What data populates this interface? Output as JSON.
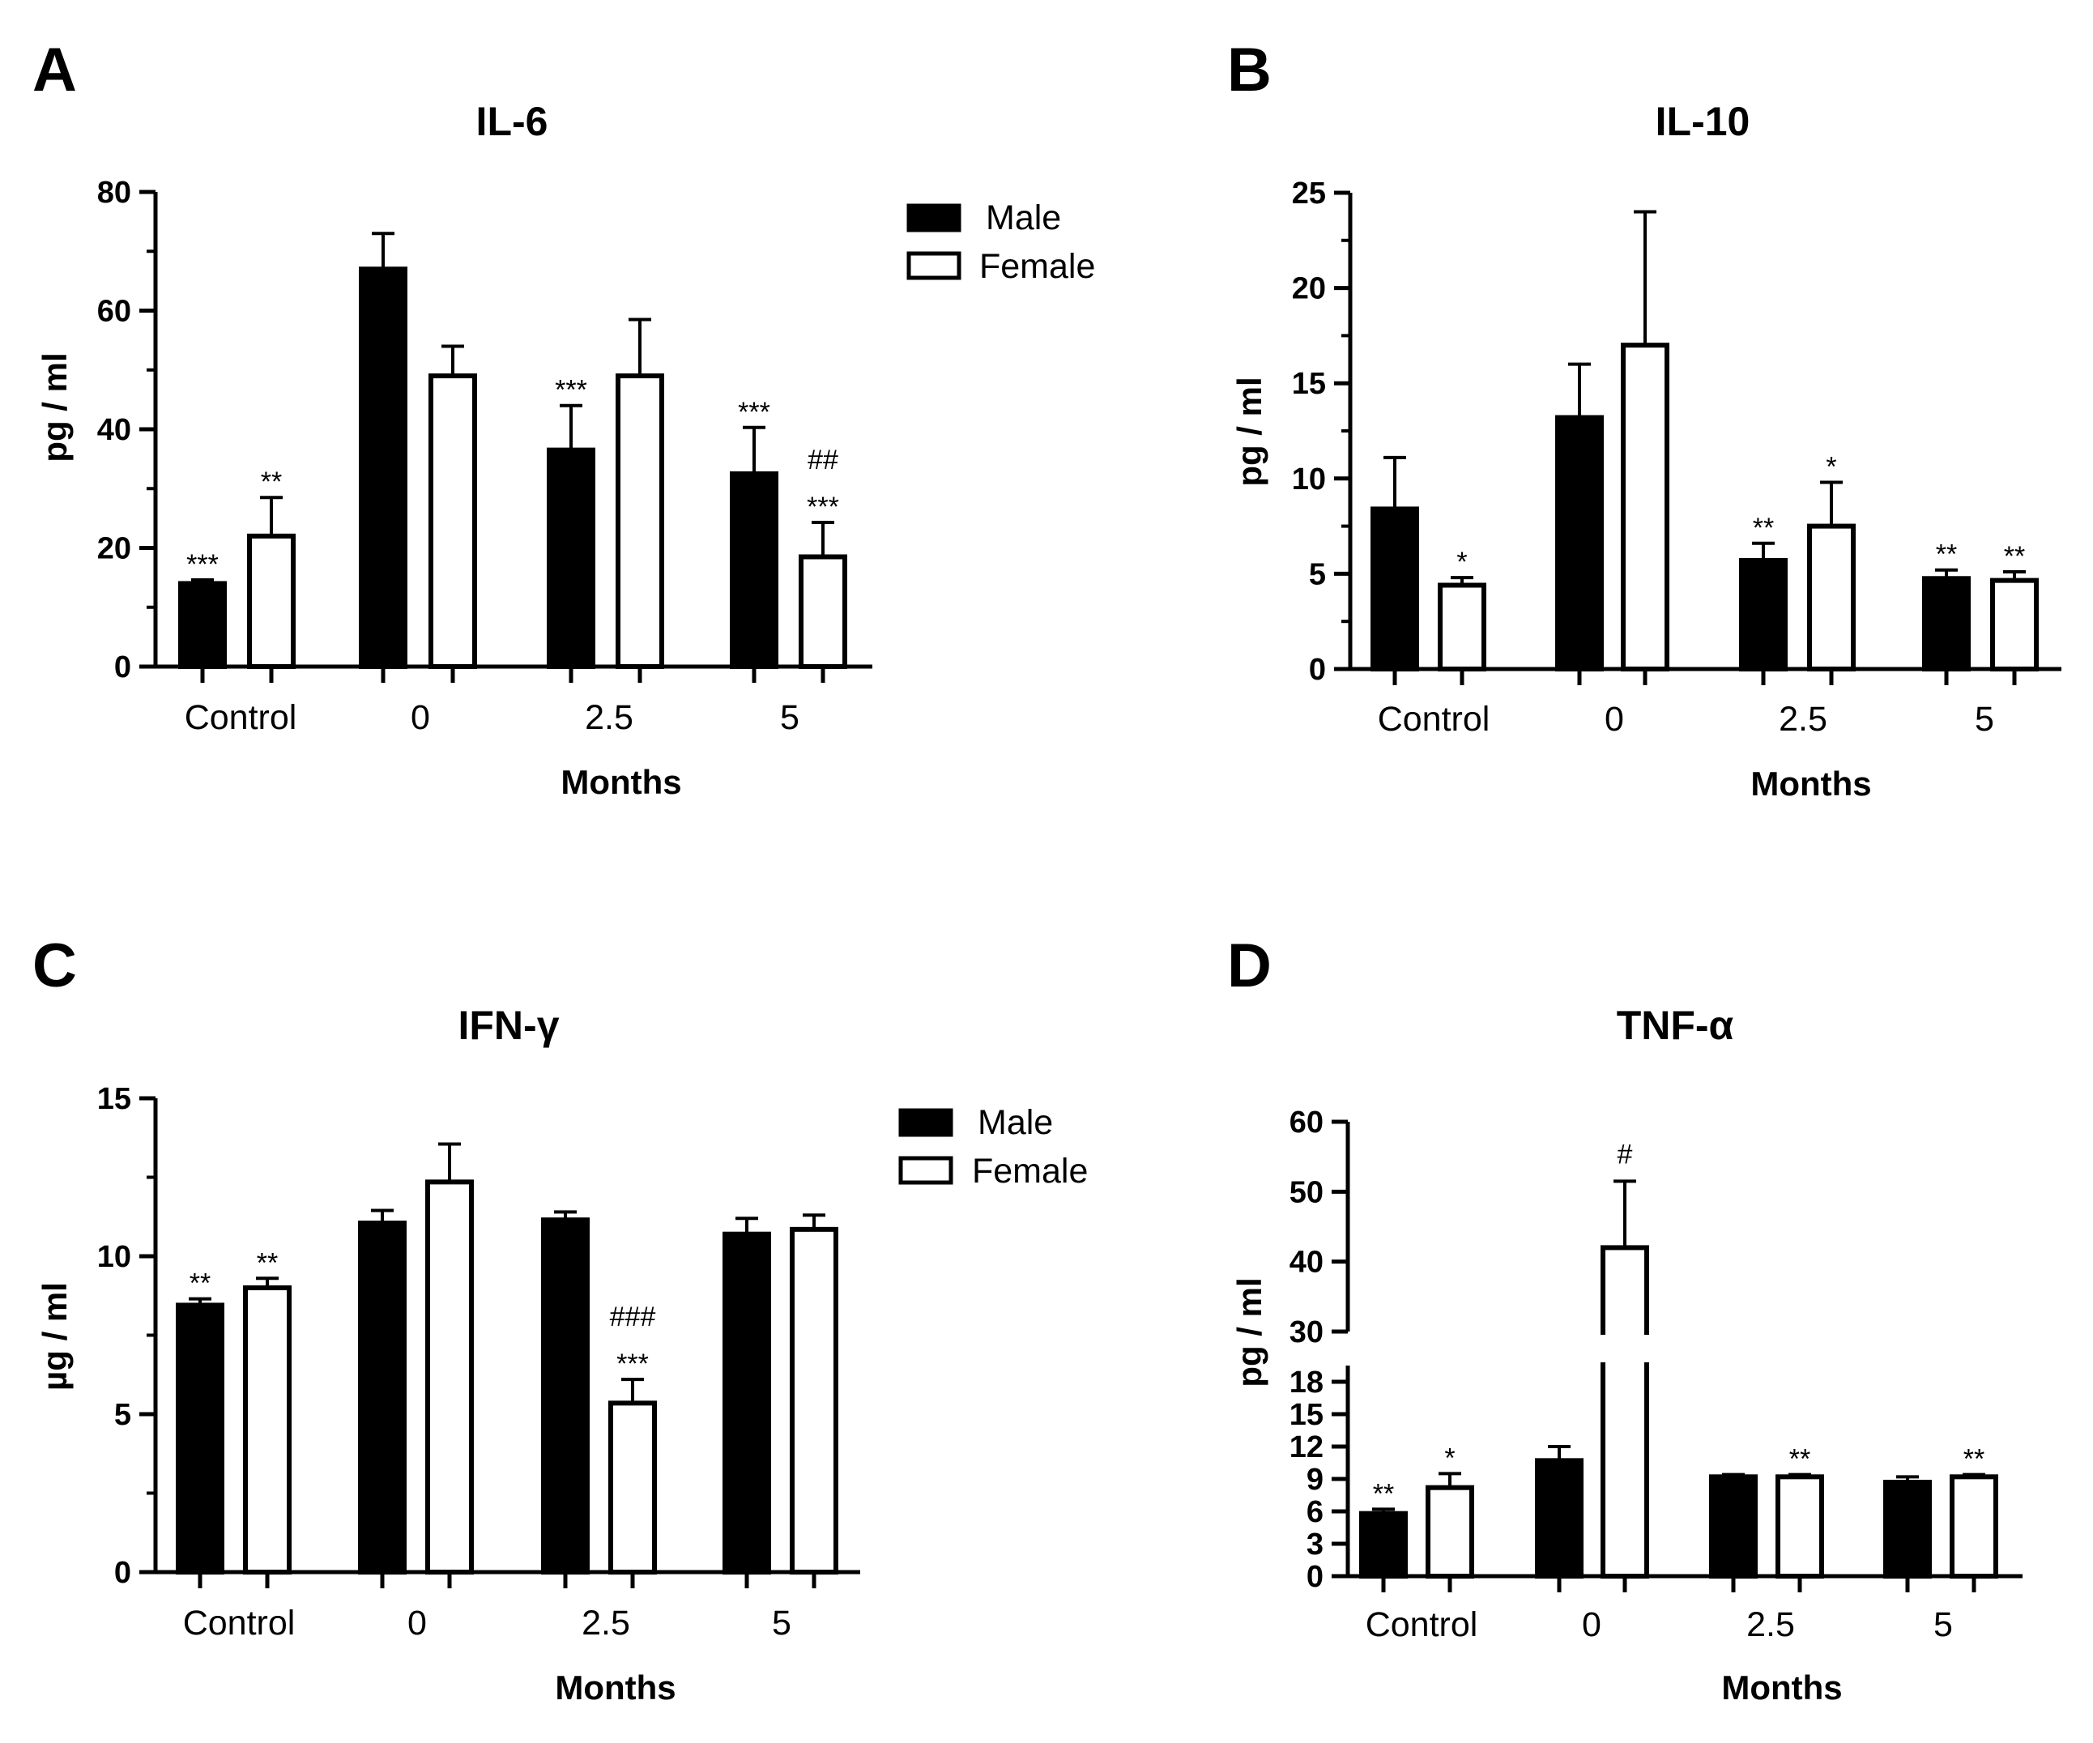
{
  "chart_data": [
    {
      "type": "bar",
      "panel": "A",
      "title": "IL-6",
      "xlabel": "Months",
      "ylabel": "pg / ml",
      "categories": [
        "Control",
        "0",
        "2.5",
        "5"
      ],
      "ylim": [
        0,
        80
      ],
      "yticks": [
        "0",
        "20",
        "40",
        "60",
        "80"
      ],
      "series": [
        {
          "name": "Male",
          "values": [
            14,
            67,
            36.5,
            32.5
          ],
          "errors": [
            0.6,
            6,
            7.5,
            7.8
          ]
        },
        {
          "name": "Female",
          "values": [
            22,
            49,
            49,
            18.5
          ],
          "errors": [
            6.5,
            5,
            9.5,
            5.8
          ]
        }
      ],
      "annotations": [
        {
          "series": 0,
          "category": 0,
          "lines": [
            "***"
          ]
        },
        {
          "series": 1,
          "category": 0,
          "lines": [
            "**"
          ]
        },
        {
          "series": 0,
          "category": 2,
          "lines": [
            "***"
          ]
        },
        {
          "series": 0,
          "category": 3,
          "lines": [
            "***"
          ]
        },
        {
          "series": 1,
          "category": 3,
          "lines": [
            "##",
            "***"
          ]
        }
      ],
      "legend": "right"
    },
    {
      "type": "bar",
      "panel": "B",
      "title": "IL-10",
      "xlabel": "Months",
      "ylabel": "pg / ml",
      "categories": [
        "Control",
        "0",
        "2.5",
        "5"
      ],
      "ylim": [
        0,
        25
      ],
      "yticks": [
        "0",
        "5",
        "10",
        "15",
        "20",
        "25"
      ],
      "series": [
        {
          "name": "Male",
          "values": [
            8.4,
            13.2,
            5.7,
            4.75
          ],
          "errors": [
            2.7,
            2.8,
            0.9,
            0.45
          ]
        },
        {
          "name": "Female",
          "values": [
            4.4,
            17,
            7.5,
            4.65
          ],
          "errors": [
            0.4,
            7,
            2.3,
            0.45
          ]
        }
      ],
      "annotations": [
        {
          "series": 1,
          "category": 0,
          "lines": [
            "*"
          ]
        },
        {
          "series": 0,
          "category": 2,
          "lines": [
            "**"
          ]
        },
        {
          "series": 1,
          "category": 2,
          "lines": [
            "*"
          ]
        },
        {
          "series": 0,
          "category": 3,
          "lines": [
            "**"
          ]
        },
        {
          "series": 1,
          "category": 3,
          "lines": [
            "**"
          ]
        }
      ],
      "legend": "none"
    },
    {
      "type": "bar",
      "panel": "C",
      "title": "IFN-γ",
      "xlabel": "Months",
      "ylabel": "µg / ml",
      "categories": [
        "Control",
        "0",
        "2.5",
        "5"
      ],
      "ylim": [
        0,
        15
      ],
      "yticks": [
        "0",
        "5",
        "10",
        "15"
      ],
      "series": [
        {
          "name": "Male",
          "values": [
            8.45,
            11.05,
            11.15,
            10.7
          ],
          "errors": [
            0.2,
            0.4,
            0.25,
            0.5
          ]
        },
        {
          "name": "Female",
          "values": [
            9,
            12.35,
            5.35,
            10.85
          ],
          "errors": [
            0.3,
            1.2,
            0.75,
            0.45
          ]
        }
      ],
      "annotations": [
        {
          "series": 0,
          "category": 0,
          "lines": [
            "**"
          ]
        },
        {
          "series": 1,
          "category": 0,
          "lines": [
            "**"
          ]
        },
        {
          "series": 1,
          "category": 2,
          "lines": [
            "###",
            "***"
          ]
        }
      ],
      "legend": "right"
    },
    {
      "type": "bar",
      "panel": "D",
      "title": "TNF-α",
      "xlabel": "Months",
      "ylabel": "pg / ml",
      "categories": [
        "Control",
        "0",
        "2.5",
        "5"
      ],
      "ylim": [
        0,
        60
      ],
      "axis_break": [
        19.5,
        30
      ],
      "yticks": [
        "0",
        "3",
        "6",
        "9",
        "12",
        "15",
        "18",
        "30",
        "40",
        "50",
        "60"
      ],
      "series": [
        {
          "name": "Male",
          "values": [
            5.8,
            10.7,
            9.2,
            8.7
          ],
          "errors": [
            0.4,
            1.3,
            0.2,
            0.5
          ]
        },
        {
          "name": "Female",
          "values": [
            8.2,
            42,
            9.2,
            9.2
          ],
          "errors": [
            1.3,
            9.5,
            0.2,
            0.2
          ]
        }
      ],
      "annotations": [
        {
          "series": 0,
          "category": 0,
          "lines": [
            "**"
          ]
        },
        {
          "series": 1,
          "category": 0,
          "lines": [
            "*"
          ]
        },
        {
          "series": 1,
          "category": 1,
          "lines": [
            "#"
          ]
        },
        {
          "series": 1,
          "category": 2,
          "lines": [
            "**"
          ]
        },
        {
          "series": 1,
          "category": 3,
          "lines": [
            "**"
          ]
        }
      ],
      "legend": "none"
    }
  ]
}
